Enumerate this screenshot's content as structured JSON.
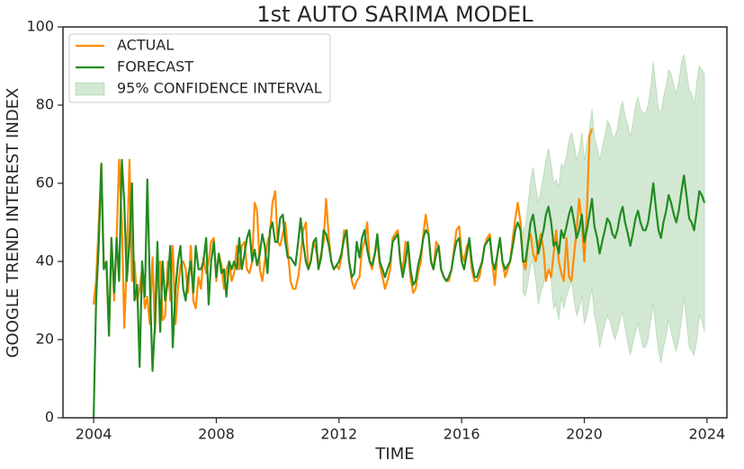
{
  "chart_data": {
    "type": "line",
    "title": "1st AUTO SARIMA MODEL",
    "xlabel": "TIME",
    "ylabel": "GOOGLE TREND INTEREST INDEX",
    "xlim": [
      2003,
      2024.65
    ],
    "xticks": [
      2004,
      2008,
      2012,
      2016,
      2020,
      2024
    ],
    "ylim": [
      0,
      100
    ],
    "yticks": [
      0,
      20,
      40,
      60,
      80,
      100
    ],
    "legend": "upper left",
    "x": [
      2004,
      2004.08,
      2004.17,
      2004.25,
      2004.33,
      2004.42,
      2004.5,
      2004.58,
      2004.67,
      2004.75,
      2004.83,
      2004.92,
      2005,
      2005.08,
      2005.17,
      2005.25,
      2005.33,
      2005.42,
      2005.5,
      2005.58,
      2005.67,
      2005.75,
      2005.83,
      2005.92,
      2006,
      2006.08,
      2006.17,
      2006.25,
      2006.33,
      2006.42,
      2006.5,
      2006.58,
      2006.67,
      2006.75,
      2006.83,
      2006.92,
      2007,
      2007.08,
      2007.17,
      2007.25,
      2007.33,
      2007.42,
      2007.5,
      2007.58,
      2007.67,
      2007.75,
      2007.83,
      2007.92,
      2008,
      2008.08,
      2008.17,
      2008.25,
      2008.33,
      2008.42,
      2008.5,
      2008.58,
      2008.67,
      2008.75,
      2008.83,
      2008.92,
      2009,
      2009.08,
      2009.17,
      2009.25,
      2009.33,
      2009.42,
      2009.5,
      2009.58,
      2009.67,
      2009.75,
      2009.83,
      2009.92,
      2010,
      2010.08,
      2010.17,
      2010.25,
      2010.33,
      2010.42,
      2010.5,
      2010.58,
      2010.67,
      2010.75,
      2010.83,
      2010.92,
      2011,
      2011.08,
      2011.17,
      2011.25,
      2011.33,
      2011.42,
      2011.5,
      2011.58,
      2011.67,
      2011.75,
      2011.83,
      2011.92,
      2012,
      2012.08,
      2012.17,
      2012.25,
      2012.33,
      2012.42,
      2012.5,
      2012.58,
      2012.67,
      2012.75,
      2012.83,
      2012.92,
      2013,
      2013.08,
      2013.17,
      2013.25,
      2013.33,
      2013.42,
      2013.5,
      2013.58,
      2013.67,
      2013.75,
      2013.83,
      2013.92,
      2014,
      2014.08,
      2014.17,
      2014.25,
      2014.33,
      2014.42,
      2014.5,
      2014.58,
      2014.67,
      2014.75,
      2014.83,
      2014.92,
      2015,
      2015.08,
      2015.17,
      2015.25,
      2015.33,
      2015.42,
      2015.5,
      2015.58,
      2015.67,
      2015.75,
      2015.83,
      2015.92,
      2016,
      2016.08,
      2016.17,
      2016.25,
      2016.33,
      2016.42,
      2016.5,
      2016.58,
      2016.67,
      2016.75,
      2016.83,
      2016.92,
      2017,
      2017.08,
      2017.17,
      2017.25,
      2017.33,
      2017.42,
      2017.5,
      2017.58,
      2017.67,
      2017.75,
      2017.83,
      2017.92,
      2018,
      2018.08,
      2018.17,
      2018.25,
      2018.33,
      2018.42,
      2018.5,
      2018.58,
      2018.67,
      2018.75,
      2018.83,
      2018.92,
      2019,
      2019.08,
      2019.17,
      2019.25,
      2019.33,
      2019.42,
      2019.5,
      2019.58,
      2019.67,
      2019.75,
      2019.83,
      2019.92,
      2020,
      2020.08,
      2020.17,
      2020.25,
      2020.33,
      2020.42,
      2020.5,
      2020.58,
      2020.67,
      2020.75,
      2020.83,
      2020.92,
      2021,
      2021.08,
      2021.17,
      2021.25,
      2021.33,
      2021.42,
      2021.5,
      2021.58,
      2021.67,
      2021.75,
      2021.83,
      2021.92,
      2022,
      2022.08,
      2022.17,
      2022.25,
      2022.33,
      2022.42,
      2022.5,
      2022.58,
      2022.67,
      2022.75,
      2022.83,
      2022.92,
      2023,
      2023.08,
      2023.17,
      2023.25,
      2023.33,
      2023.42,
      2023.5,
      2023.58,
      2023.67,
      2023.75,
      2023.83,
      2023.92
    ],
    "series": [
      {
        "name": "ACTUAL",
        "color": "#ff8c00",
        "values": [
          29,
          35,
          50,
          65,
          40,
          38,
          21,
          46,
          30,
          46,
          66,
          50,
          23,
          40,
          66,
          35,
          40,
          30,
          33,
          38,
          28,
          31,
          24,
          41,
          22,
          39,
          40,
          25,
          26,
          40,
          30,
          44,
          24,
          33,
          39,
          40,
          38,
          32,
          44,
          30,
          28,
          36,
          33,
          41,
          37,
          40,
          45,
          46,
          35,
          42,
          39,
          33,
          38,
          40,
          35,
          37,
          44,
          38,
          44,
          45,
          38,
          37,
          40,
          55,
          53,
          38,
          35,
          40,
          45,
          47,
          55,
          58,
          45,
          44,
          47,
          50,
          43,
          35,
          33,
          33,
          36,
          41,
          48,
          50,
          38,
          40,
          45,
          43,
          39,
          42,
          45,
          56,
          46,
          40,
          38,
          39,
          38,
          41,
          48,
          46,
          40,
          35,
          33,
          35,
          36,
          43,
          45,
          50,
          40,
          38,
          42,
          45,
          39,
          36,
          33,
          35,
          38,
          46,
          47,
          48,
          40,
          38,
          45,
          44,
          36,
          32,
          33,
          37,
          40,
          47,
          52,
          47,
          40,
          38,
          45,
          44,
          38,
          36,
          35,
          35,
          38,
          43,
          48,
          49,
          42,
          40,
          44,
          45,
          38,
          35,
          35,
          36,
          40,
          44,
          46,
          47,
          40,
          34,
          42,
          46,
          40,
          36,
          38,
          40,
          46,
          51,
          55,
          50,
          40,
          38,
          45,
          47,
          42,
          40,
          44,
          47,
          43,
          35,
          38,
          36,
          42,
          48,
          40,
          37,
          35,
          46,
          36,
          35,
          42,
          48,
          56,
          50,
          40,
          52,
          72,
          74,
          null,
          null,
          null,
          null,
          null,
          null,
          null,
          null,
          null,
          null,
          null,
          null,
          null,
          null,
          null,
          null,
          null,
          null,
          null,
          null,
          null,
          null,
          null,
          null,
          null,
          null,
          null,
          null,
          null,
          null,
          null,
          null,
          null,
          null,
          null,
          null,
          null,
          null,
          null,
          null,
          null,
          null,
          null,
          null
        ]
      },
      {
        "name": "FORECAST",
        "color": "#228b22",
        "values": [
          0,
          30,
          45,
          65,
          38,
          40,
          21,
          46,
          32,
          46,
          35,
          66,
          55,
          35,
          45,
          60,
          30,
          34,
          13,
          40,
          31,
          61,
          35,
          12,
          24,
          45,
          22,
          40,
          30,
          35,
          44,
          18,
          33,
          40,
          44,
          33,
          30,
          36,
          40,
          32,
          44,
          38,
          38,
          40,
          46,
          29,
          40,
          45,
          36,
          42,
          37,
          38,
          31,
          40,
          38,
          40,
          38,
          46,
          38,
          42,
          46,
          48,
          40,
          43,
          39,
          42,
          47,
          44,
          37,
          48,
          50,
          45,
          45,
          51,
          52,
          45,
          41,
          41,
          40,
          39,
          45,
          51,
          45,
          40,
          38,
          40,
          45,
          46,
          38,
          41,
          48,
          47,
          44,
          40,
          38,
          39,
          40,
          42,
          46,
          48,
          40,
          36,
          37,
          45,
          41,
          46,
          48,
          43,
          40,
          39,
          42,
          47,
          40,
          38,
          36,
          38,
          40,
          45,
          46,
          47,
          40,
          36,
          40,
          45,
          38,
          34,
          35,
          39,
          42,
          46,
          48,
          47,
          40,
          38,
          42,
          44,
          38,
          36,
          35,
          36,
          38,
          42,
          45,
          46,
          40,
          38,
          42,
          46,
          40,
          36,
          36,
          38,
          40,
          44,
          45,
          46,
          40,
          38,
          42,
          46,
          40,
          38,
          39,
          40,
          44,
          48,
          50,
          48,
          40,
          40,
          45,
          50,
          52,
          47,
          42,
          45,
          48,
          52,
          54,
          50,
          44,
          45,
          42,
          48,
          46,
          49,
          52,
          54,
          50,
          46,
          48,
          52,
          45,
          48,
          52,
          56,
          49,
          46,
          42,
          45,
          48,
          51,
          50,
          47,
          46,
          48,
          52,
          54,
          50,
          47,
          44,
          47,
          51,
          53,
          50,
          48,
          48,
          50,
          55,
          60,
          54,
          48,
          46,
          50,
          53,
          57,
          55,
          52,
          50,
          53,
          58,
          62,
          57,
          51,
          50,
          48,
          53,
          58,
          57,
          55
        ]
      }
    ],
    "band": {
      "name": "95% CONFIDENCE INTERVAL",
      "color": "#228b22",
      "x": [
        2018,
        2018.08,
        2018.17,
        2018.25,
        2018.33,
        2018.42,
        2018.5,
        2018.58,
        2018.67,
        2018.75,
        2018.83,
        2018.92,
        2019,
        2019.08,
        2019.17,
        2019.25,
        2019.33,
        2019.42,
        2019.5,
        2019.58,
        2019.67,
        2019.75,
        2019.83,
        2019.92,
        2020,
        2020.08,
        2020.17,
        2020.25,
        2020.33,
        2020.42,
        2020.5,
        2020.58,
        2020.67,
        2020.75,
        2020.83,
        2020.92,
        2021,
        2021.08,
        2021.17,
        2021.25,
        2021.33,
        2021.42,
        2021.5,
        2021.58,
        2021.67,
        2021.75,
        2021.83,
        2021.92,
        2022,
        2022.08,
        2022.17,
        2022.25,
        2022.33,
        2022.42,
        2022.5,
        2022.58,
        2022.67,
        2022.75,
        2022.83,
        2022.92,
        2023,
        2023.08,
        2023.17,
        2023.25,
        2023.33,
        2023.42,
        2023.5,
        2023.58,
        2023.67,
        2023.75,
        2023.83,
        2023.92
      ],
      "lower": [
        32,
        31,
        35,
        39,
        40,
        35,
        29,
        32,
        34,
        38,
        39,
        35,
        28,
        29,
        25,
        31,
        28,
        31,
        33,
        35,
        30,
        26,
        28,
        31,
        24,
        26,
        30,
        33,
        26,
        23,
        18,
        21,
        24,
        26,
        25,
        22,
        20,
        22,
        25,
        27,
        23,
        19,
        16,
        19,
        22,
        24,
        21,
        18,
        18,
        20,
        25,
        29,
        23,
        17,
        14,
        18,
        21,
        25,
        22,
        19,
        17,
        20,
        25,
        31,
        25,
        18,
        17,
        16,
        20,
        26,
        25,
        22
      ],
      "upper": [
        48,
        49,
        55,
        61,
        64,
        59,
        55,
        58,
        62,
        66,
        69,
        65,
        60,
        61,
        59,
        65,
        64,
        67,
        71,
        73,
        70,
        66,
        68,
        73,
        66,
        70,
        74,
        79,
        72,
        69,
        66,
        69,
        72,
        76,
        75,
        72,
        72,
        74,
        79,
        81,
        77,
        75,
        72,
        75,
        80,
        82,
        79,
        78,
        78,
        80,
        85,
        91,
        85,
        79,
        78,
        82,
        85,
        89,
        88,
        85,
        83,
        86,
        91,
        93,
        89,
        84,
        83,
        80,
        86,
        90,
        89,
        88
      ]
    }
  }
}
